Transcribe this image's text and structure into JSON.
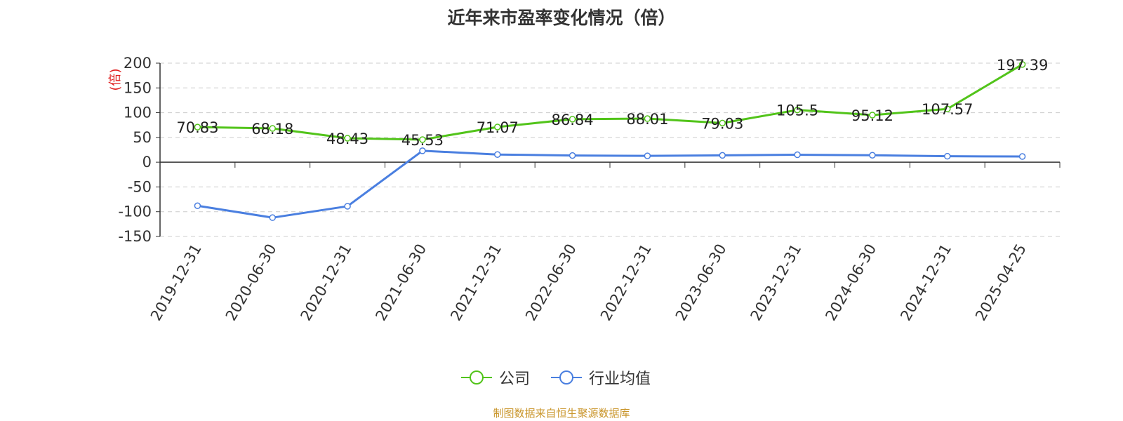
{
  "chart_data": {
    "type": "line",
    "title": "近年来市盈率变化情况（倍）",
    "ylabel": "(倍)",
    "xlabel": "",
    "ylim": [
      -150,
      200
    ],
    "yticks": [
      200,
      150,
      100,
      50,
      0,
      -50,
      -100,
      -150
    ],
    "categories": [
      "2019-12-31",
      "2020-06-30",
      "2020-12-31",
      "2021-06-30",
      "2021-12-31",
      "2022-06-30",
      "2022-12-31",
      "2023-06-30",
      "2023-12-31",
      "2024-06-30",
      "2024-12-31",
      "2025-04-25"
    ],
    "series": [
      {
        "name": "公司",
        "color": "#52c41a",
        "values": [
          70.83,
          68.18,
          48.43,
          45.53,
          71.07,
          86.84,
          88.01,
          79.03,
          105.5,
          95.12,
          107.57,
          197.39
        ],
        "labels": [
          "70.83",
          "68.18",
          "48.43",
          "45.53",
          "71.07",
          "86.84",
          "88.01",
          "79.03",
          "105.5",
          "95.12",
          "107.57",
          "197.39"
        ]
      },
      {
        "name": "行业均值",
        "color": "#4a7fe0",
        "values": [
          -88,
          -112,
          -89,
          23,
          15.5,
          13.5,
          12.8,
          13.8,
          15,
          14,
          12,
          11.5
        ]
      }
    ],
    "grid": true,
    "legend_position": "bottom-center"
  },
  "source": "制图数据来自恒生聚源数据库",
  "legend": [
    {
      "label": "公司",
      "color": "#52c41a",
      "icon": "circle-line-icon"
    },
    {
      "label": "行业均值",
      "color": "#4a7fe0",
      "icon": "circle-line-icon"
    }
  ]
}
